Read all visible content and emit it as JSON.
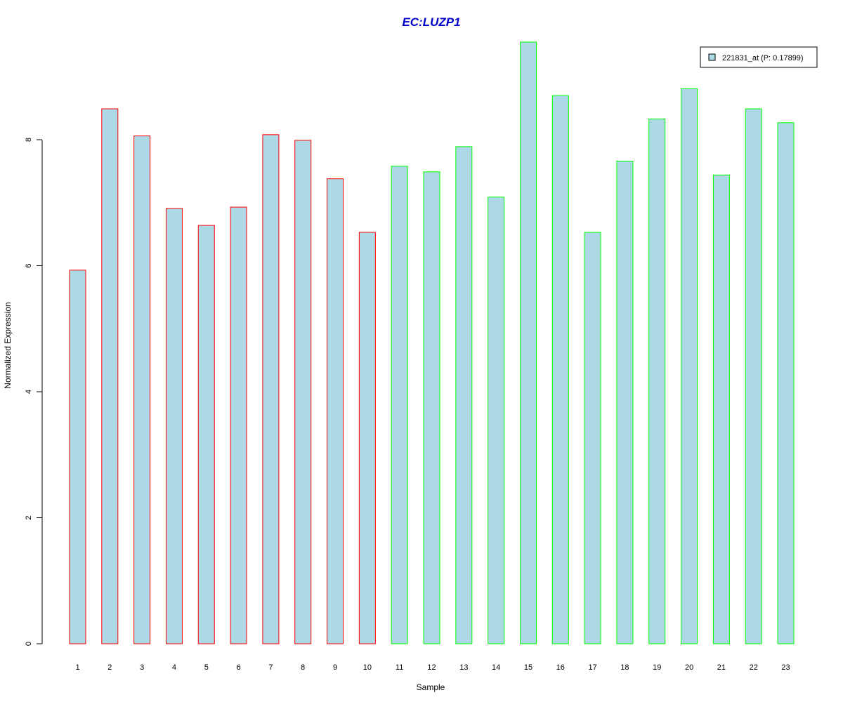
{
  "chart_data": {
    "type": "bar",
    "title": "EC:LUZP1",
    "title_color": "#0000CC",
    "xlabel": "Sample",
    "ylabel": "Normalized Expression",
    "categories": [
      "1",
      "2",
      "3",
      "4",
      "5",
      "6",
      "7",
      "8",
      "9",
      "10",
      "11",
      "12",
      "13",
      "14",
      "15",
      "16",
      "17",
      "18",
      "19",
      "20",
      "21",
      "22",
      "23"
    ],
    "values": [
      5.93,
      8.49,
      8.06,
      6.91,
      6.64,
      6.93,
      8.08,
      7.99,
      7.38,
      6.53,
      7.58,
      7.49,
      7.89,
      7.09,
      9.55,
      8.7,
      6.53,
      7.66,
      8.33,
      8.81,
      7.44,
      8.49,
      8.27
    ],
    "groups": [
      "red",
      "red",
      "red",
      "red",
      "red",
      "red",
      "red",
      "red",
      "red",
      "red",
      "green",
      "green",
      "green",
      "green",
      "green",
      "green",
      "green",
      "green",
      "green",
      "green",
      "green",
      "green",
      "green"
    ],
    "fill_color": "#ADD8E6",
    "group_colors": {
      "red": "#FF0000",
      "green": "#00FF00"
    },
    "yticks": [
      0,
      2,
      4,
      6,
      8
    ],
    "ylim": [
      0,
      9.55
    ],
    "grid": false,
    "legend": {
      "position": "top-right",
      "entries": [
        {
          "label": "221831_at (P: 0.17899)",
          "color": "#ADD8E6"
        }
      ]
    }
  }
}
